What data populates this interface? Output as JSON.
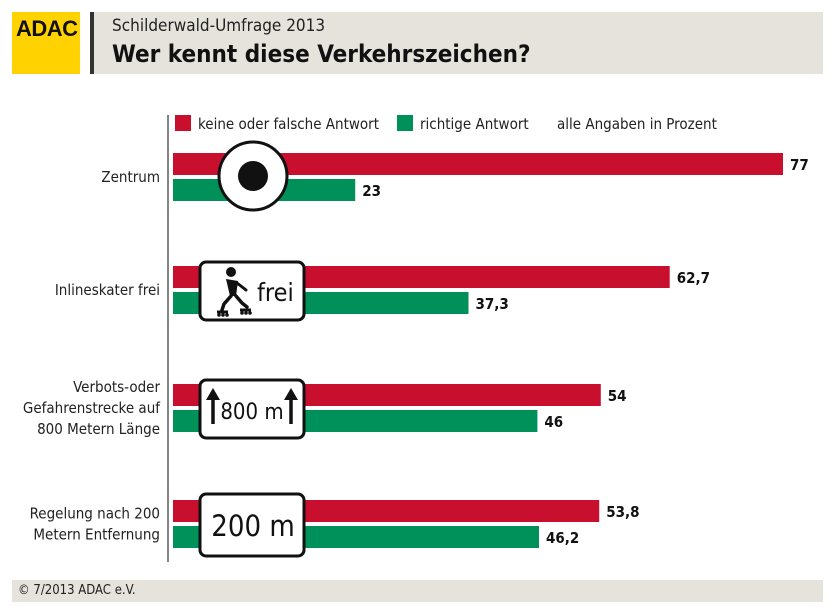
{
  "header": {
    "logo_text": "ADAC",
    "subtitle": "Schilderwald-Umfrage 2013",
    "title": "Wer kennt diese Verkehrszeichen?"
  },
  "legend": {
    "wrong_label": "keine oder falsche Antwort",
    "right_label": "richtige Antwort",
    "note": "alle Angaben in Prozent"
  },
  "colors": {
    "wrong": "#c8102e",
    "right": "#00905a"
  },
  "signs": {
    "inline_text": "frei",
    "strecke_text": "800 m",
    "entfernung_text": "200 m"
  },
  "chart_data": {
    "type": "bar",
    "orientation": "horizontal",
    "categories": [
      [
        "Zentrum"
      ],
      [
        "Inlineskater frei"
      ],
      [
        "Verbots-oder",
        "Gefahrenstrecke auf",
        "800 Metern Länge"
      ],
      [
        "Regelung nach 200",
        "Metern Entfernung"
      ]
    ],
    "series": [
      {
        "name": "keine oder falsche Antwort",
        "values": [
          77,
          62.7,
          54,
          53.8
        ],
        "labels": [
          "77",
          "62,7",
          "54",
          "53,8"
        ]
      },
      {
        "name": "richtige Antwort",
        "values": [
          23,
          37.3,
          46,
          46.2
        ],
        "labels": [
          "23",
          "37,3",
          "46",
          "46,2"
        ]
      }
    ],
    "xlim": [
      0,
      77
    ]
  },
  "footer": {
    "copyright": "© 7/2013  ADAC e.V."
  }
}
